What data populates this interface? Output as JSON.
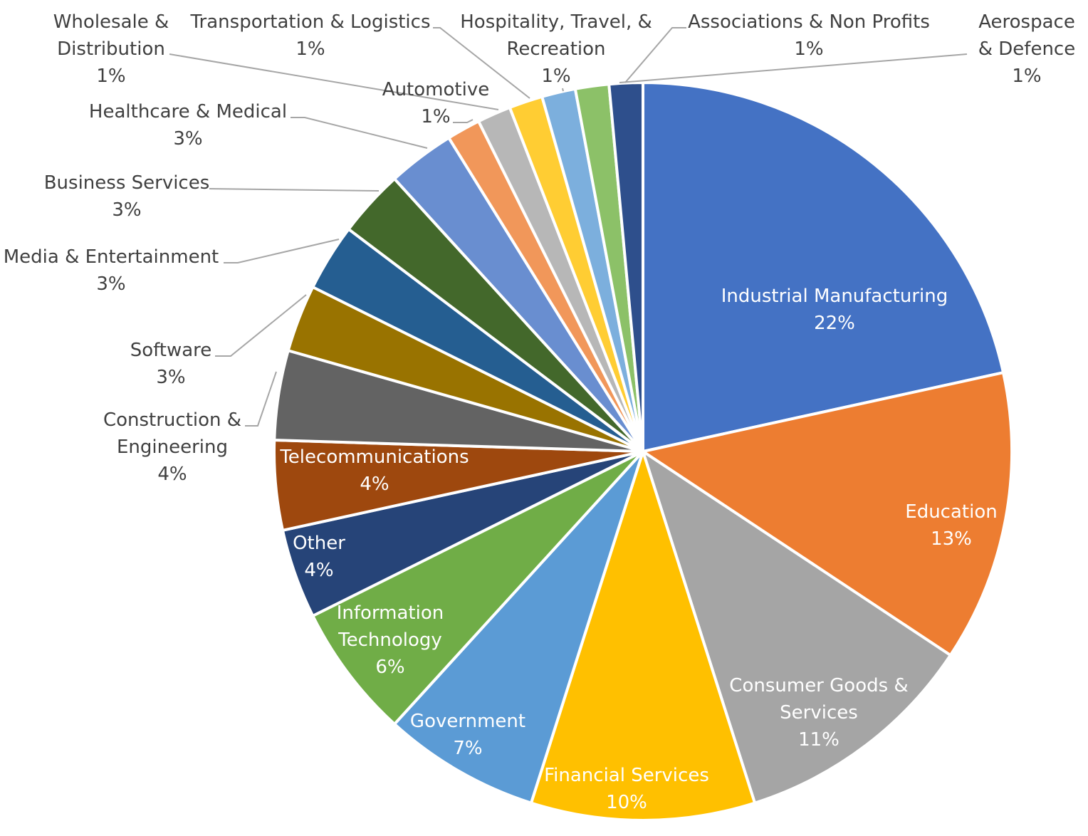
{
  "chart_data": {
    "type": "pie",
    "start_angle_deg": 0,
    "direction": "clockwise",
    "label_format": "{category}\n{percent}",
    "slices": [
      {
        "name": "Industrial Manufacturing",
        "label": "Industrial Manufacturing\n22%",
        "value": 22,
        "percent": "22%",
        "color": "#4472C4",
        "label_position": "inside",
        "label_color": "#FFFFFF"
      },
      {
        "name": "Education",
        "label": "Education\n13%",
        "value": 13,
        "percent": "13%",
        "color": "#ED7D31",
        "label_position": "inside",
        "label_color": "#FFFFFF"
      },
      {
        "name": "Consumer Goods & Services",
        "label": "Consumer Goods &\nServices\n11%",
        "value": 11,
        "percent": "11%",
        "color": "#A5A5A5",
        "label_position": "inside",
        "label_color": "#FFFFFF"
      },
      {
        "name": "Financial Services",
        "label": "Financial Services\n10%",
        "value": 10,
        "percent": "10%",
        "color": "#FFC000",
        "label_position": "inside",
        "label_color": "#FFFFFF"
      },
      {
        "name": "Government",
        "label": "Government\n7%",
        "value": 7,
        "percent": "7%",
        "color": "#5B9BD5",
        "label_position": "inside",
        "label_color": "#FFFFFF"
      },
      {
        "name": "Information Technology",
        "label": "Information\nTechnology\n6%",
        "value": 6,
        "percent": "6%",
        "color": "#70AD47",
        "label_position": "inside",
        "label_color": "#FFFFFF"
      },
      {
        "name": "Other",
        "label": "Other\n4%",
        "value": 4,
        "percent": "4%",
        "color": "#264478",
        "label_position": "inside",
        "label_color": "#FFFFFF"
      },
      {
        "name": "Telecommunications",
        "label": "Telecommunications\n4%",
        "value": 4,
        "percent": "4%",
        "color": "#9E480E",
        "label_position": "inside",
        "label_color": "#FFFFFF"
      },
      {
        "name": "Construction & Engineering",
        "label": "Construction &\nEngineering\n4%",
        "value": 4,
        "percent": "4%",
        "color": "#636363",
        "label_position": "outside",
        "label_color": "#404040"
      },
      {
        "name": "Software",
        "label": "Software\n3%",
        "value": 3,
        "percent": "3%",
        "color": "#997300",
        "label_position": "outside",
        "label_color": "#404040"
      },
      {
        "name": "Media & Entertainment",
        "label": "Media & Entertainment\n3%",
        "value": 3,
        "percent": "3%",
        "color": "#255E91",
        "label_position": "outside",
        "label_color": "#404040"
      },
      {
        "name": "Business Services",
        "label": "Business Services\n3%",
        "value": 3,
        "percent": "3%",
        "color": "#43682B",
        "label_position": "outside",
        "label_color": "#404040"
      },
      {
        "name": "Healthcare & Medical",
        "label": "Healthcare & Medical\n3%",
        "value": 3,
        "percent": "3%",
        "color": "#698ED0",
        "label_position": "outside",
        "label_color": "#404040"
      },
      {
        "name": "Automotive",
        "label": "Automotive\n1%",
        "value": 1.5,
        "percent": "1%",
        "color": "#F1975A",
        "label_position": "outside",
        "label_color": "#404040"
      },
      {
        "name": "Wholesale & Distribution",
        "label": "Wholesale &\nDistribution\n1%",
        "value": 1.5,
        "percent": "1%",
        "color": "#B7B7B7",
        "label_position": "outside",
        "label_color": "#404040"
      },
      {
        "name": "Transportation & Logistics",
        "label": "Transportation & Logistics\n1%",
        "value": 1.5,
        "percent": "1%",
        "color": "#FFCD33",
        "label_position": "outside",
        "label_color": "#404040"
      },
      {
        "name": "Hospitality, Travel, & Recreation",
        "label": "Hospitality, Travel, &\nRecreation\n1%",
        "value": 1.5,
        "percent": "1%",
        "color": "#7CAFDD",
        "label_position": "outside",
        "label_color": "#404040"
      },
      {
        "name": "Associations & Non Profits",
        "label": "Associations & Non Profits\n1%",
        "value": 1.5,
        "percent": "1%",
        "color": "#8CC168",
        "label_position": "outside",
        "label_color": "#404040"
      },
      {
        "name": "Aerospace & Defence",
        "label": "Aerospace\n& Defence\n1%",
        "value": 1.5,
        "percent": "1%",
        "color": "#2E4F8C",
        "label_position": "outside",
        "label_color": "#404040"
      }
    ],
    "title": "",
    "legend": "none"
  }
}
